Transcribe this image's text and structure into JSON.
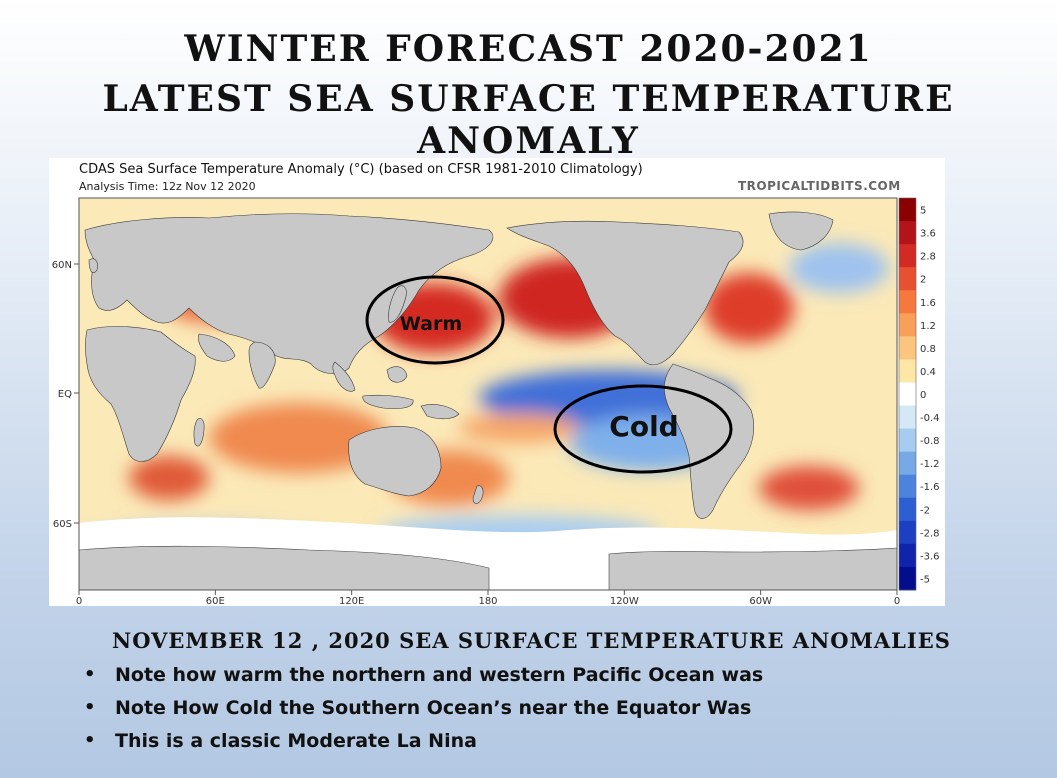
{
  "slide": {
    "title_line1": "WINTER FORECAST 2020-2021",
    "title_line2": "LATEST SEA SURFACE TEMPERATURE ANOMALY",
    "subheading": "NOVEMBER  12 , 2020 SEA SURFACE TEMPERATURE ANOMALIES",
    "bullets": [
      "Note how warm the northern and western Pacific Ocean was",
      "Note How Cold the Southern Ocean’s near the Equator Was",
      "This is a classic Moderate La Nina"
    ]
  },
  "map": {
    "title": "CDAS Sea Surface Temperature Anomaly (°C) (based on CFSR 1981-2010 Climatology)",
    "analysis_time": "Analysis Time: 12z Nov 12 2020",
    "credit": "TROPICALTIDBITS.COM",
    "lat_labels": [
      "60N",
      "EQ",
      "60S"
    ],
    "lon_labels": [
      "0",
      "60E",
      "120E",
      "180",
      "120W",
      "60W",
      "0"
    ],
    "colorbar_labels": [
      "5",
      "3.6",
      "2.8",
      "2",
      "1.6",
      "1.2",
      "0.8",
      "0.4",
      "0",
      "-0.4",
      "-0.8",
      "-1.2",
      "-1.6",
      "-2",
      "-2.8",
      "-3.6",
      "-5"
    ],
    "colorbar_colors": [
      "#8b0000",
      "#b3141a",
      "#d22b24",
      "#e8512f",
      "#f5793f",
      "#f99f5a",
      "#fcc57e",
      "#fde6a6",
      "#ffffff",
      "#d4e8f6",
      "#a6cdef",
      "#76a9e5",
      "#4e83dd",
      "#2d5fd2",
      "#1b40c2",
      "#0f24ab",
      "#050d8f"
    ],
    "annotations": [
      {
        "label": "Warm",
        "meaning": "warm anomaly, northwest Pacific"
      },
      {
        "label": "Cold",
        "meaning": "cold anomaly, equatorial east Pacific"
      }
    ]
  }
}
